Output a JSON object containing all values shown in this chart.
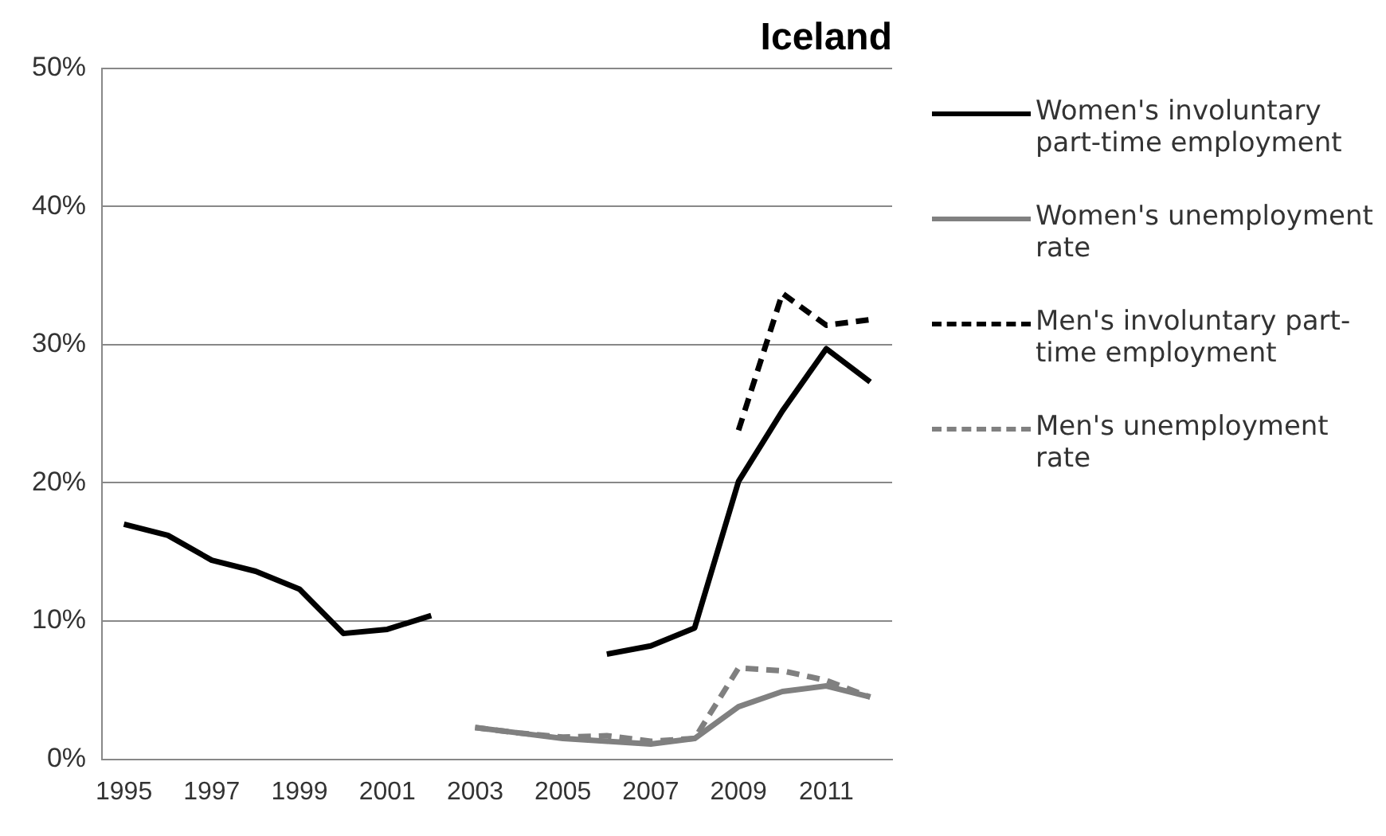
{
  "chart_data": {
    "type": "line",
    "title": "Iceland",
    "categories": [
      "1995",
      null,
      "1997",
      null,
      "1999",
      null,
      "2001",
      null,
      "2003",
      null,
      "2005",
      null,
      "2007",
      null,
      "2009",
      null,
      "2011",
      null
    ],
    "series": [
      {
        "name": "Women's involuntary part-time employment",
        "color": "#000000",
        "line_style": "solid",
        "values": [
          17.0,
          16.2,
          14.4,
          13.6,
          12.3,
          9.1,
          9.4,
          10.4,
          null,
          null,
          null,
          7.6,
          8.2,
          9.5,
          20.1,
          25.2,
          29.7,
          27.3
        ]
      },
      {
        "name": "Women's unemployment rate",
        "color": "#808080",
        "line_style": "solid",
        "values": [
          null,
          null,
          null,
          null,
          null,
          null,
          null,
          null,
          2.3,
          1.9,
          1.5,
          1.3,
          1.1,
          1.5,
          3.8,
          4.9,
          5.3,
          4.5
        ]
      },
      {
        "name": "Men's involuntary part-time employment",
        "color": "#000000",
        "line_style": "dashed",
        "values": [
          null,
          null,
          null,
          null,
          null,
          null,
          null,
          null,
          null,
          null,
          null,
          null,
          null,
          null,
          23.8,
          33.7,
          31.4,
          31.8
        ]
      },
      {
        "name": "Men's unemployment rate",
        "color": "#808080",
        "line_style": "dashed",
        "values": [
          null,
          null,
          null,
          null,
          null,
          null,
          null,
          null,
          2.3,
          1.9,
          1.6,
          1.7,
          1.3,
          1.5,
          6.6,
          6.4,
          5.7,
          4.5
        ]
      }
    ],
    "ylim": [
      0,
      50
    ],
    "yticks": [
      {
        "value": 0,
        "label": "0%"
      },
      {
        "value": 10,
        "label": "10%"
      },
      {
        "value": 20,
        "label": "20%"
      },
      {
        "value": 30,
        "label": "30%"
      },
      {
        "value": 40,
        "label": "40%"
      },
      {
        "value": 50,
        "label": "50%"
      }
    ],
    "grid": "y",
    "legend": "right",
    "marker": "none"
  }
}
